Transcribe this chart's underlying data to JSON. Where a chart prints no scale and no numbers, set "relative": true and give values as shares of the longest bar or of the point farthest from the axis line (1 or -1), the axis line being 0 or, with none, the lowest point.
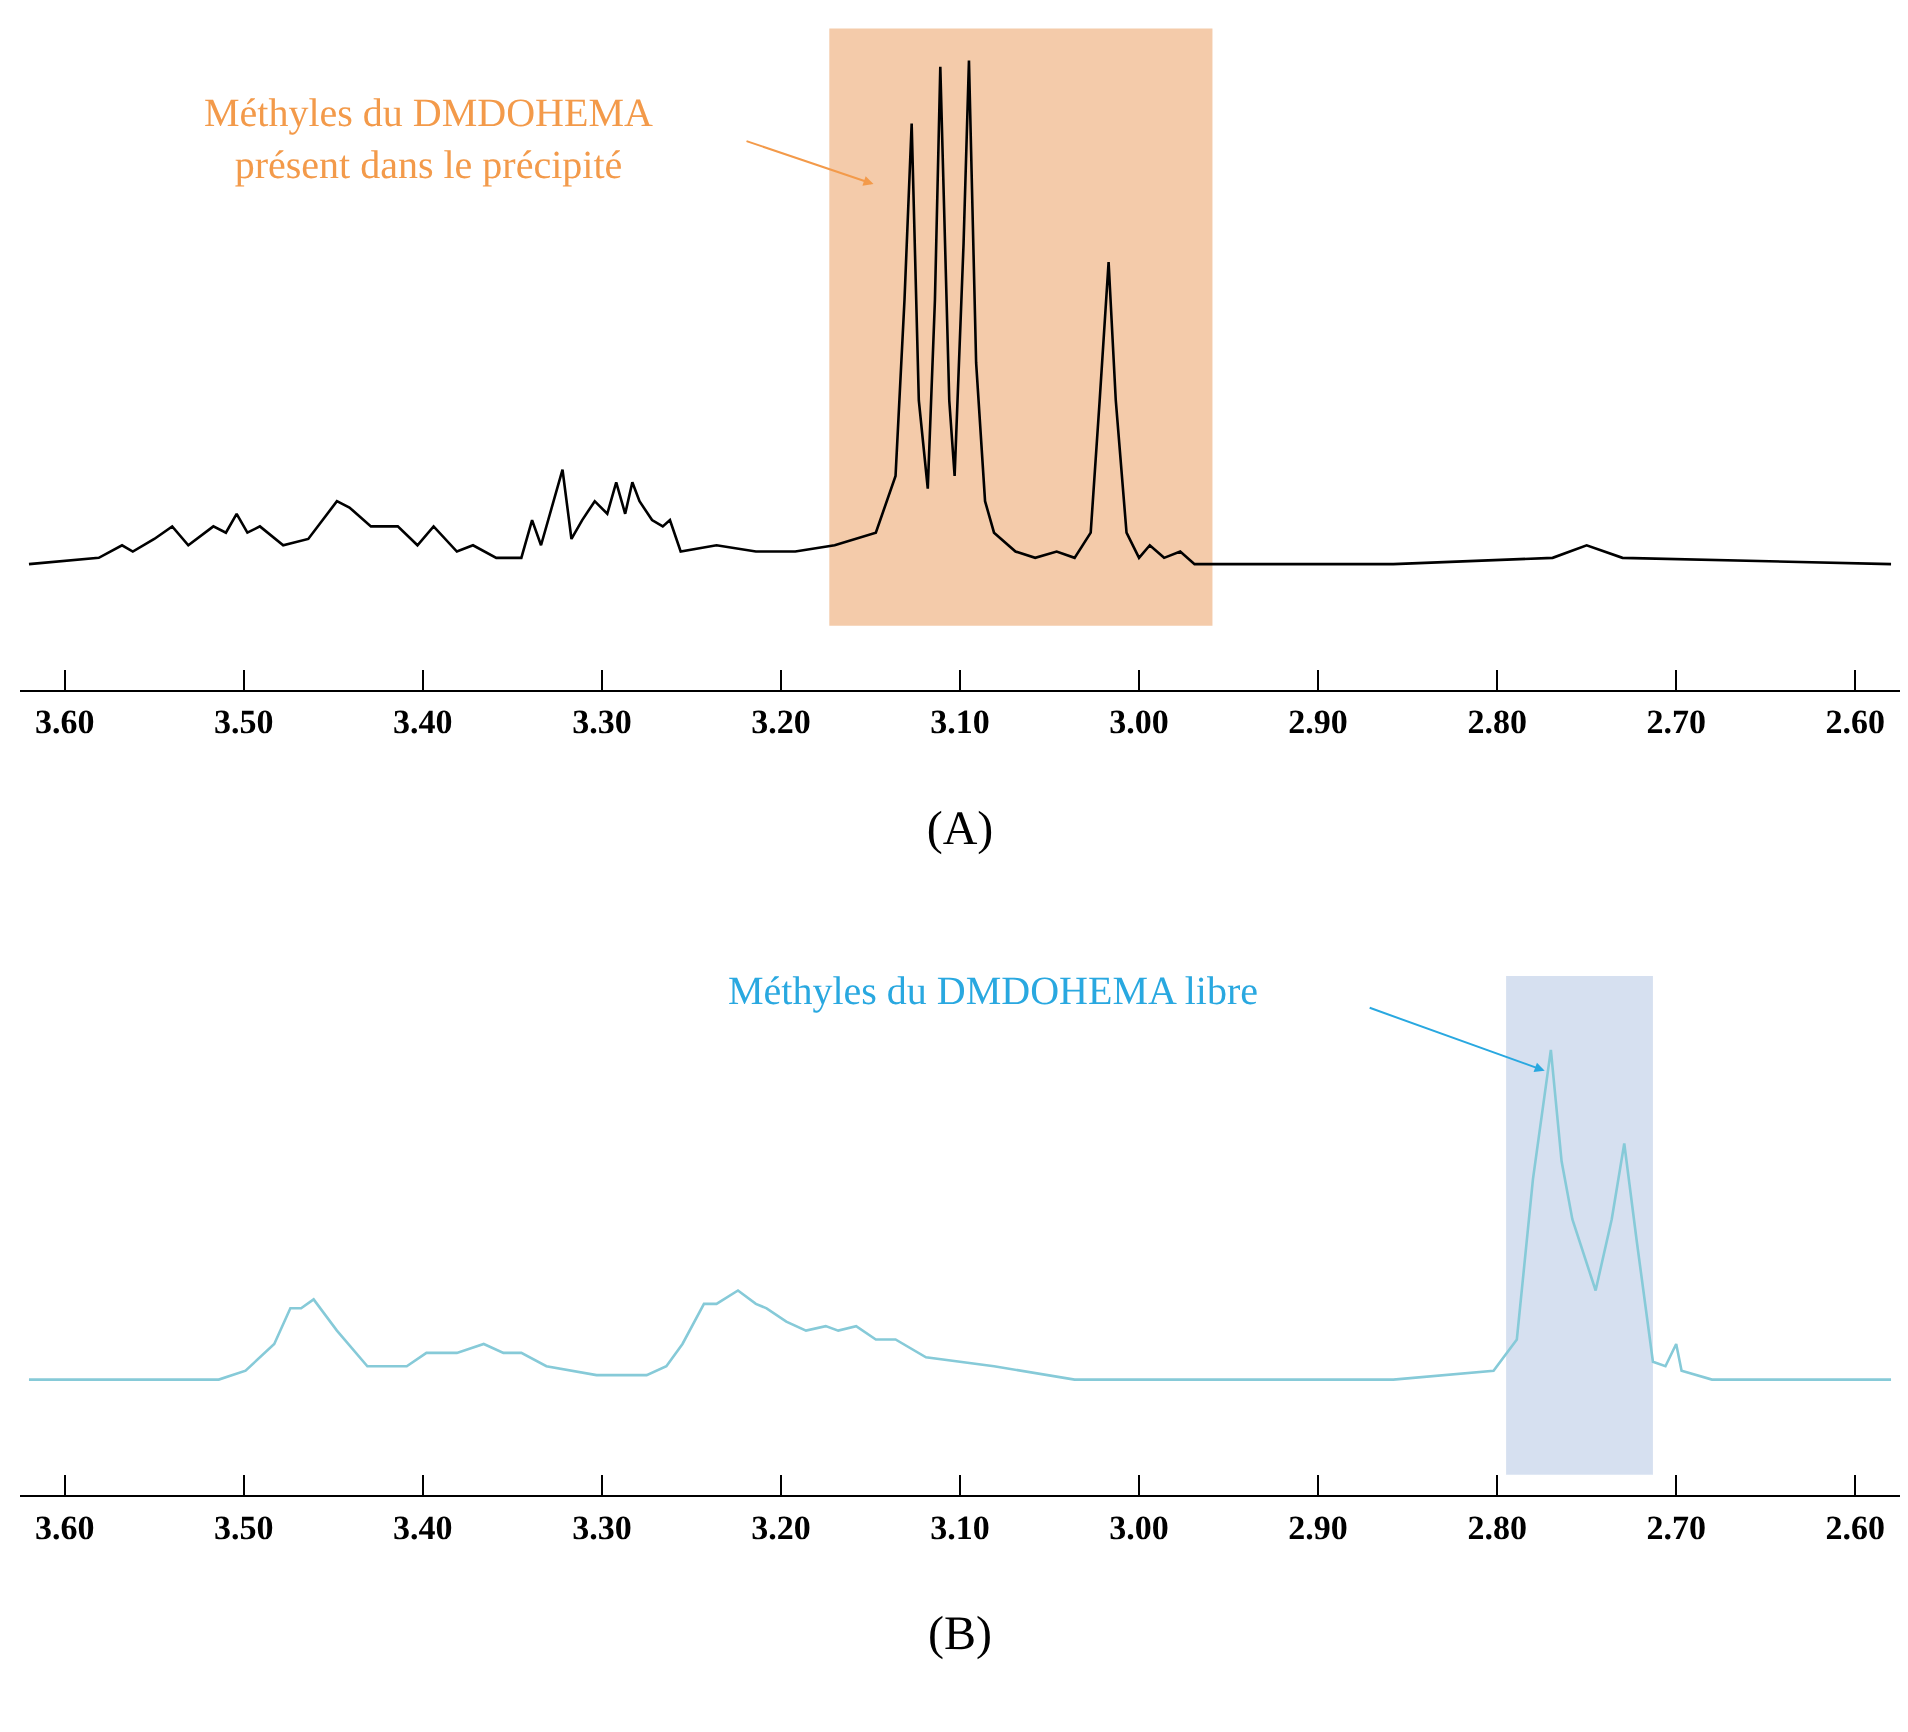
{
  "chart_data": [
    {
      "type": "line",
      "relative": true,
      "xlabel": "(A)",
      "tick_labels": "x",
      "grid": false,
      "marker": "none",
      "line_style": "solid",
      "xlim": [
        3.625,
        2.575
      ],
      "xticks": [
        {
          "value": 3.6,
          "label": "3.60"
        },
        {
          "value": 3.5,
          "label": "3.50"
        },
        {
          "value": 3.4,
          "label": "3.40"
        },
        {
          "value": 3.3,
          "label": "3.30"
        },
        {
          "value": 3.2,
          "label": "3.20"
        },
        {
          "value": 3.1,
          "label": "3.10"
        },
        {
          "value": 3.0,
          "label": "3.00"
        },
        {
          "value": 2.9,
          "label": "2.90"
        },
        {
          "value": 2.8,
          "label": "2.80"
        },
        {
          "value": 2.7,
          "label": "2.70"
        },
        {
          "value": 2.6,
          "label": "2.60"
        }
      ],
      "bands": [
        {
          "axis": "x",
          "from": 3.173,
          "to": 2.959,
          "color": "#f4cbaa"
        }
      ],
      "annotations": [
        "Méthyles du DMDOHEMA\nprésent dans le précipité"
      ],
      "series": [
        {
          "color": "#000000",
          "x": [
            3.62,
            3.581,
            3.568,
            3.562,
            3.55,
            3.54,
            3.531,
            3.517,
            3.51,
            3.504,
            3.498,
            3.491,
            3.478,
            3.464,
            3.448,
            3.441,
            3.429,
            3.414,
            3.403,
            3.394,
            3.381,
            3.372,
            3.359,
            3.345,
            3.339,
            3.334,
            3.322,
            3.317,
            3.311,
            3.304,
            3.297,
            3.292,
            3.287,
            3.283,
            3.279,
            3.272,
            3.266,
            3.262,
            3.256,
            3.236,
            3.214,
            3.192,
            3.17,
            3.147,
            3.136,
            3.131,
            3.127,
            3.123,
            3.118,
            3.114,
            3.111,
            3.106,
            3.103,
            3.098,
            3.095,
            3.091,
            3.086,
            3.081,
            3.069,
            3.058,
            3.046,
            3.036,
            3.027,
            3.022,
            3.017,
            3.013,
            3.007,
            3.0,
            2.994,
            2.986,
            2.977,
            2.969,
            2.858,
            2.769,
            2.75,
            2.73,
            2.58
          ],
          "values": [
            0.2,
            0.21,
            0.23,
            0.22,
            0.24,
            0.26,
            0.23,
            0.26,
            0.25,
            0.28,
            0.25,
            0.26,
            0.23,
            0.24,
            0.3,
            0.29,
            0.26,
            0.26,
            0.23,
            0.26,
            0.22,
            0.23,
            0.21,
            0.21,
            0.27,
            0.23,
            0.35,
            0.24,
            0.27,
            0.3,
            0.28,
            0.33,
            0.28,
            0.33,
            0.3,
            0.27,
            0.26,
            0.27,
            0.22,
            0.23,
            0.22,
            0.22,
            0.23,
            0.25,
            0.34,
            0.62,
            0.9,
            0.46,
            0.32,
            0.62,
            0.99,
            0.46,
            0.34,
            0.71,
            1.0,
            0.52,
            0.3,
            0.25,
            0.22,
            0.21,
            0.22,
            0.21,
            0.25,
            0.46,
            0.68,
            0.46,
            0.25,
            0.21,
            0.23,
            0.21,
            0.22,
            0.2,
            0.2,
            0.21,
            0.23,
            0.21,
            0.2
          ]
        }
      ]
    },
    {
      "type": "line",
      "relative": true,
      "xlabel": "(B)",
      "tick_labels": "x",
      "grid": false,
      "marker": "none",
      "line_style": "solid",
      "xlim": [
        3.625,
        2.575
      ],
      "xticks": [
        {
          "value": 3.6,
          "label": "3.60"
        },
        {
          "value": 3.5,
          "label": "3.50"
        },
        {
          "value": 3.4,
          "label": "3.40"
        },
        {
          "value": 3.3,
          "label": "3.30"
        },
        {
          "value": 3.2,
          "label": "3.20"
        },
        {
          "value": 3.1,
          "label": "3.10"
        },
        {
          "value": 3.0,
          "label": "3.00"
        },
        {
          "value": 2.9,
          "label": "2.90"
        },
        {
          "value": 2.8,
          "label": "2.80"
        },
        {
          "value": 2.7,
          "label": "2.70"
        },
        {
          "value": 2.6,
          "label": "2.60"
        }
      ],
      "bands": [
        {
          "axis": "x",
          "from": 2.795,
          "to": 2.713,
          "color": "#d6e0f0"
        }
      ],
      "annotations": [
        "Méthyles du DMDOHEMA libre"
      ],
      "series": [
        {
          "color": "#86cad8",
          "x": [
            3.62,
            3.514,
            3.499,
            3.483,
            3.474,
            3.468,
            3.461,
            3.448,
            3.431,
            3.409,
            3.398,
            3.381,
            3.366,
            3.355,
            3.345,
            3.331,
            3.303,
            3.275,
            3.264,
            3.255,
            3.243,
            3.236,
            3.224,
            3.214,
            3.208,
            3.197,
            3.186,
            3.175,
            3.168,
            3.158,
            3.147,
            3.136,
            3.119,
            3.081,
            3.036,
            2.969,
            2.858,
            2.802,
            2.789,
            2.78,
            2.77,
            2.764,
            2.758,
            2.745,
            2.736,
            2.729,
            2.722,
            2.713,
            2.706,
            2.7,
            2.697,
            2.68,
            2.58
          ],
          "values": [
            0.26,
            0.26,
            0.28,
            0.34,
            0.42,
            0.42,
            0.44,
            0.37,
            0.29,
            0.29,
            0.32,
            0.32,
            0.34,
            0.32,
            0.32,
            0.29,
            0.27,
            0.27,
            0.29,
            0.34,
            0.43,
            0.43,
            0.46,
            0.43,
            0.42,
            0.39,
            0.37,
            0.38,
            0.37,
            0.38,
            0.35,
            0.35,
            0.31,
            0.29,
            0.26,
            0.26,
            0.26,
            0.28,
            0.35,
            0.71,
            1.0,
            0.75,
            0.62,
            0.46,
            0.62,
            0.79,
            0.57,
            0.3,
            0.29,
            0.34,
            0.28,
            0.26,
            0.26
          ]
        }
      ]
    }
  ]
}
